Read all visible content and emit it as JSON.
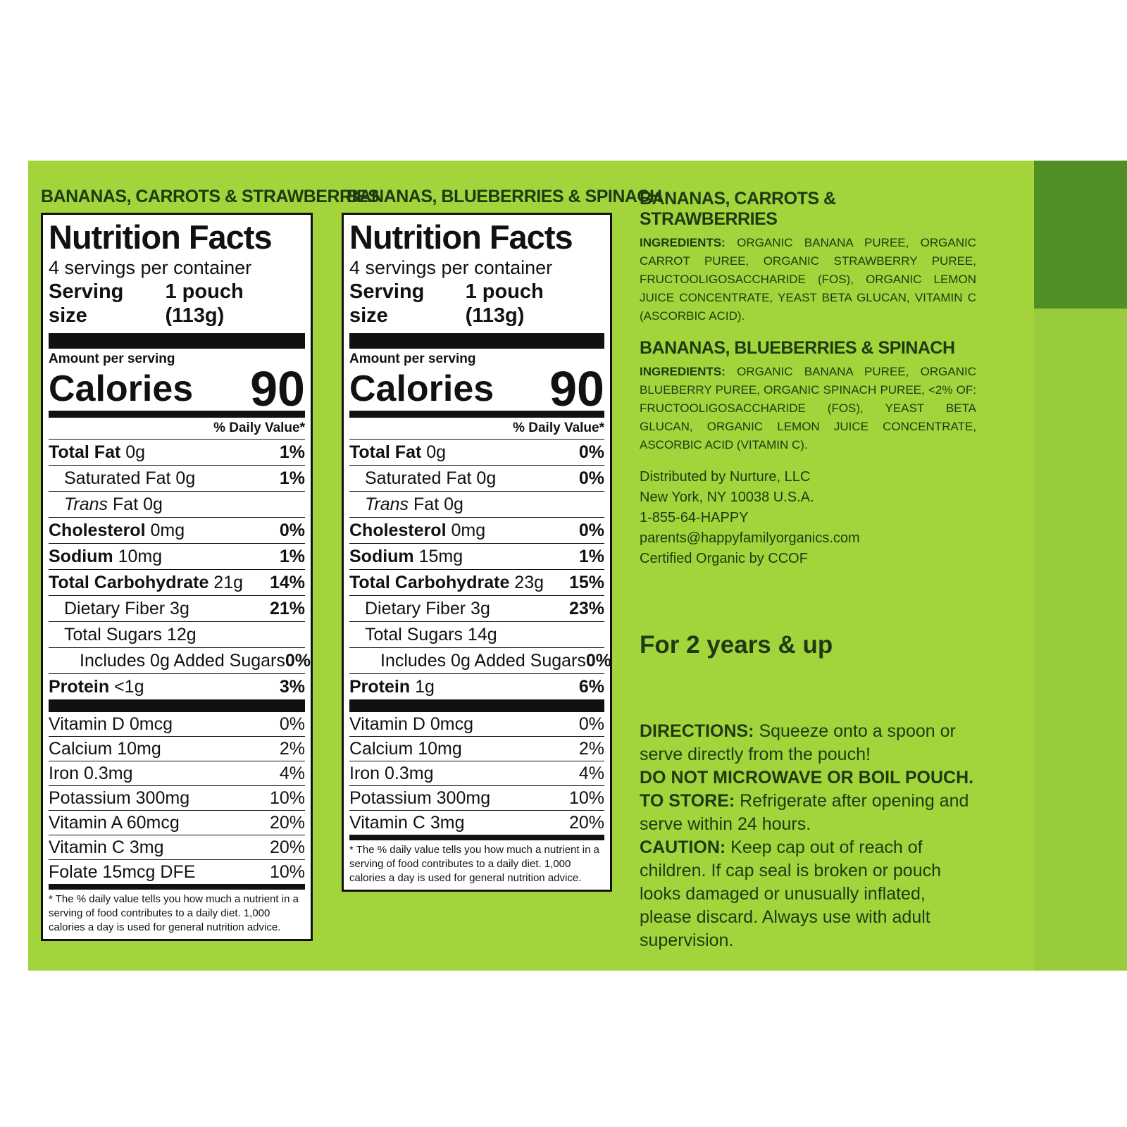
{
  "labels": [
    {
      "product": "BANANAS, CARROTS & STRAWBERRIES",
      "title": "Nutrition Facts",
      "servings": "4 servings per container",
      "serving_size_label": "Serving size",
      "serving_size": "1 pouch (113g)",
      "amount_per_serving": "Amount per serving",
      "calories_label": "Calories",
      "calories": 90,
      "daily_value_header": "% Daily Value*",
      "nutrients": [
        {
          "name": "Total Fat",
          "amount": "0g",
          "dv": "1%",
          "level": 0
        },
        {
          "name": "Saturated Fat 0g",
          "dv": "1%",
          "level": 1
        },
        {
          "name": "Trans",
          "italic": true,
          "amount": "Fat 0g",
          "level": 1
        },
        {
          "name": "Cholesterol",
          "amount": "0mg",
          "dv": "0%",
          "level": 0
        },
        {
          "name": "Sodium",
          "amount": "10mg",
          "dv": "1%",
          "level": 0
        },
        {
          "name": "Total Carbohydrate",
          "amount": "21g",
          "dv": "14%",
          "level": 0
        },
        {
          "name": "Dietary Fiber 3g",
          "dv": "21%",
          "level": 1
        },
        {
          "name": "Total Sugars 12g",
          "level": 1
        },
        {
          "name": "Includes 0g Added Sugars",
          "dv": "0%",
          "level": 2
        },
        {
          "name": "Protein",
          "amount": "<1g",
          "dv": "3%",
          "level": 0
        }
      ],
      "vitamins": [
        {
          "name": "Vitamin D 0mcg",
          "dv": "0%"
        },
        {
          "name": "Calcium 10mg",
          "dv": "2%"
        },
        {
          "name": "Iron 0.3mg",
          "dv": "4%"
        },
        {
          "name": "Potassium 300mg",
          "dv": "10%"
        },
        {
          "name": "Vitamin A 60mcg",
          "dv": "20%"
        },
        {
          "name": "Vitamin C 3mg",
          "dv": "20%"
        },
        {
          "name": "Folate 15mcg DFE",
          "dv": "10%"
        }
      ],
      "footnote": "* The % daily value tells you how much a nutrient in a serving of food contributes to a daily diet. 1,000 calories a day is used for general nutrition advice."
    },
    {
      "product": "BANANAS, BLUEBERRIES & SPINACH",
      "title": "Nutrition Facts",
      "servings": "4 servings per container",
      "serving_size_label": "Serving size",
      "serving_size": "1 pouch (113g)",
      "amount_per_serving": "Amount per serving",
      "calories_label": "Calories",
      "calories": 90,
      "daily_value_header": "% Daily Value*",
      "nutrients": [
        {
          "name": "Total Fat",
          "amount": "0g",
          "dv": "0%",
          "level": 0
        },
        {
          "name": "Saturated Fat 0g",
          "dv": "0%",
          "level": 1
        },
        {
          "name": "Trans",
          "italic": true,
          "amount": "Fat 0g",
          "level": 1
        },
        {
          "name": "Cholesterol",
          "amount": "0mg",
          "dv": "0%",
          "level": 0
        },
        {
          "name": "Sodium",
          "amount": "15mg",
          "dv": "1%",
          "level": 0
        },
        {
          "name": "Total Carbohydrate",
          "amount": "23g",
          "dv": "15%",
          "level": 0
        },
        {
          "name": "Dietary Fiber 3g",
          "dv": "23%",
          "level": 1
        },
        {
          "name": "Total Sugars 14g",
          "level": 1
        },
        {
          "name": "Includes 0g Added Sugars",
          "dv": "0%",
          "level": 2
        },
        {
          "name": "Protein",
          "amount": "1g",
          "dv": "6%",
          "level": 0
        }
      ],
      "vitamins": [
        {
          "name": "Vitamin D 0mcg",
          "dv": "0%"
        },
        {
          "name": "Calcium 10mg",
          "dv": "2%"
        },
        {
          "name": "Iron 0.3mg",
          "dv": "4%"
        },
        {
          "name": "Potassium 300mg",
          "dv": "10%"
        },
        {
          "name": "Vitamin C 3mg",
          "dv": "20%"
        }
      ],
      "footnote": "* The % daily value tells you how much a nutrient in a serving of food contributes to a daily diet. 1,000 calories a day is used for general nutrition advice."
    }
  ],
  "ingredients": [
    {
      "heading": "BANANAS, CARROTS & STRAWBERRIES",
      "label": "INGREDIENTS:",
      "text": "ORGANIC BANANA PUREE, ORGANIC CARROT PUREE, ORGANIC STRAWBERRY PUREE, FRUCTOOLIGOSACCHARIDE (FOS), ORGANIC LEMON JUICE CONCENTRATE, YEAST BETA GLUCAN, VITAMIN C (ASCORBIC ACID)."
    },
    {
      "heading": "BANANAS, BLUEBERRIES & SPINACH",
      "label": "INGREDIENTS:",
      "text": "ORGANIC BANANA PUREE, ORGANIC BLUEBERRY PUREE, ORGANIC SPINACH PUREE, <2% OF: FRUCTOOLIGOSACCHARIDE (FOS), YEAST BETA GLUCAN, ORGANIC LEMON JUICE CONCENTRATE, ASCORBIC ACID (VITAMIN C)."
    }
  ],
  "distributor": [
    "Distributed by Nurture, LLC",
    "New York, NY 10038 U.S.A.",
    "1-855-64-HAPPY",
    "parents@happyfamilyorganics.com",
    "Certified Organic by CCOF"
  ],
  "age": "For 2 years & up",
  "directions": [
    {
      "label": "DIRECTIONS:",
      "text": "Squeeze onto a spoon or serve directly from the pouch!"
    },
    {
      "label": "DO NOT MICROWAVE OR BOIL POUCH."
    },
    {
      "label": "TO STORE:",
      "text": "Refrigerate after opening and serve within 24 hours."
    },
    {
      "label": "CAUTION:",
      "text": "Keep cap out of reach of children. If cap seal is broken or pouch looks damaged or unusually inflated, please discard. Always use with adult supervision."
    }
  ]
}
